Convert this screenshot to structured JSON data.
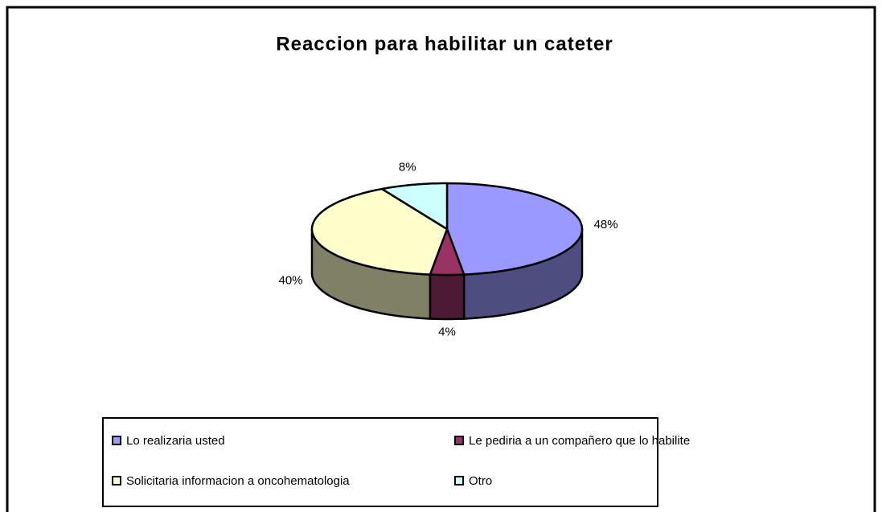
{
  "chart_data": {
    "type": "pie",
    "title": "Reaccion para habilitar un cateter",
    "categories": [
      "Lo realizaria usted",
      "Le pediria a un compañero que lo habilite",
      "Solicitaria informacion a oncohematologia",
      "Otro"
    ],
    "values": [
      48,
      4,
      40,
      8
    ],
    "value_labels": [
      "48%",
      "4%",
      "40%",
      "8%"
    ],
    "colors": [
      "#9999ff",
      "#993366",
      "#ffffcc",
      "#ccffff"
    ],
    "legend": "bottom"
  }
}
